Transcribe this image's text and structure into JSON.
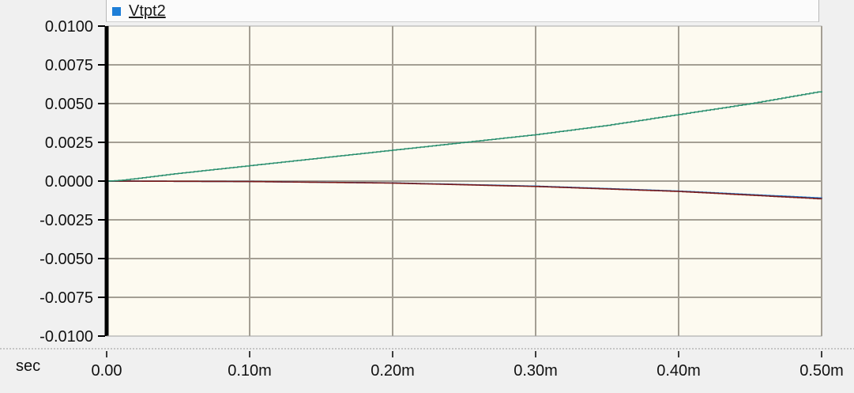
{
  "chart_data": {
    "type": "line",
    "xlabel": "sec",
    "ylabel": "",
    "xlim": [
      0,
      0.0005
    ],
    "ylim": [
      -0.01,
      0.01
    ],
    "x_ticks": [
      0,
      0.0001,
      0.0002,
      0.0003,
      0.0004,
      0.0005
    ],
    "x_tick_labels": [
      "0.00",
      "0.10m",
      "0.20m",
      "0.30m",
      "0.40m",
      "0.50m"
    ],
    "y_ticks": [
      0.01,
      0.0075,
      0.005,
      0.0025,
      0,
      -0.0025,
      -0.005,
      -0.0075,
      -0.01
    ],
    "y_tick_labels": [
      "0.0100",
      "0.0075",
      "0.0050",
      "0.0025",
      "0.0000",
      "-0.0025",
      "-0.0050",
      "-0.0075",
      "-0.0100"
    ],
    "grid": true,
    "legend": {
      "position": "top",
      "entries": [
        "Vtpt2"
      ]
    },
    "series": [
      {
        "name": "Vtpt2",
        "color": "#1e7fd8",
        "x": [
          0,
          0.0001,
          0.0002,
          0.0003,
          0.0004,
          0.0005
        ],
        "values": [
          0,
          -3e-05,
          -0.00012,
          -0.00033,
          -0.00065,
          -0.0011
        ]
      },
      {
        "color": "#2a8f6f",
        "x": [
          0,
          1e-05,
          5e-05,
          0.0001,
          0.00015,
          0.0002,
          0.00025,
          0.0003,
          0.00035,
          0.0004,
          0.00045,
          0.0005
        ],
        "values": [
          0,
          5e-05,
          0.0005,
          0.001,
          0.0015,
          0.002,
          0.0025,
          0.003,
          0.0036,
          0.0043,
          0.005,
          0.0058
        ]
      },
      {
        "color": "#7a1a1a",
        "x": [
          0,
          0.0001,
          0.0002,
          0.0003,
          0.0004,
          0.0005
        ],
        "values": [
          0,
          -3e-05,
          -0.00013,
          -0.00035,
          -0.00067,
          -0.00115
        ]
      }
    ]
  }
}
